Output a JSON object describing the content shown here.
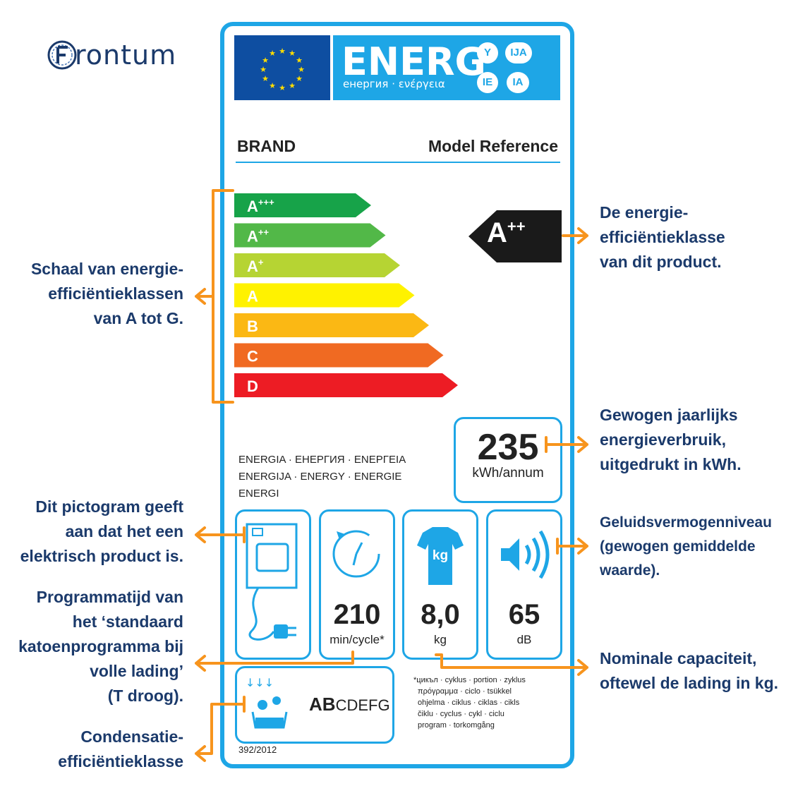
{
  "logo": {
    "text": "rontum"
  },
  "header": {
    "energ": "ENERG",
    "subtitle": "енергия · ενέργεια",
    "circles": [
      "Y",
      "IJA",
      "IE",
      "IA"
    ]
  },
  "label": {
    "brand": "BRAND",
    "model": "Model Reference",
    "classes": [
      {
        "letter": "A",
        "sup": "+++",
        "color": "#17a349"
      },
      {
        "letter": "A",
        "sup": "++",
        "color": "#52b848"
      },
      {
        "letter": "A",
        "sup": "+",
        "color": "#b6d433"
      },
      {
        "letter": "A",
        "sup": "",
        "color": "#fff200"
      },
      {
        "letter": "B",
        "sup": "",
        "color": "#fbb814"
      },
      {
        "letter": "C",
        "sup": "",
        "color": "#f06a22"
      },
      {
        "letter": "D",
        "sup": "",
        "color": "#ed1c24"
      }
    ],
    "rating": {
      "letter": "A",
      "sup": "++"
    },
    "consumption": {
      "value": "235",
      "unit": "kWh/annum"
    },
    "energy_words": [
      "ENERGIA · ЕНЕРГИЯ · ΕΝΕΡΓΕΙΑ",
      "ENERGIJA · ENERGY · ENERGIE",
      "ENERGI"
    ],
    "time": {
      "value": "210",
      "unit": "min/cycle*"
    },
    "capacity": {
      "value": "8,0",
      "unit": "kg",
      "icon_text": "kg"
    },
    "noise": {
      "value": "65",
      "unit": "dB"
    },
    "condensation": {
      "big": "AB",
      "rest": "CDEFG"
    },
    "footnote": [
      "*цикъл · cyklus · portion · zyklus",
      "πρόγραμμα · ciclo · tsükkel",
      "ohjelma · ciklus · ciklas · cikls",
      "čiklu · cyclus · cykl · ciclu",
      "program · torkomgång"
    ],
    "regulation": "392/2012"
  },
  "annotations": {
    "scale": [
      "Schaal van energie-",
      "efficiëntieklassen",
      "van A tot G."
    ],
    "class": [
      "De energie-",
      "efficiëntieklasse",
      "van dit product."
    ],
    "consumption": [
      "Gewogen jaarlijks",
      "energieverbruik,",
      "uitgedrukt in kWh."
    ],
    "pictogram": [
      "Dit pictogram geeft",
      "aan dat het een",
      "elektrisch product is."
    ],
    "noise": [
      "Geluidsvermogenniveau",
      "(gewogen gemiddelde",
      "waarde)."
    ],
    "program": [
      "Programmatijd van",
      "het ‘standaard",
      "katoenprogramma bij",
      "volle lading’",
      "(T droog)."
    ],
    "capacity": [
      "Nominale capaciteit,",
      "oftewel de lading in kg."
    ],
    "condensation": [
      "Condensatie-",
      "efficiëntieklasse"
    ]
  },
  "colors": {
    "label_blue": "#1ea6e6",
    "annotation": "#1b3a6b",
    "arrow": "#f7941d"
  }
}
